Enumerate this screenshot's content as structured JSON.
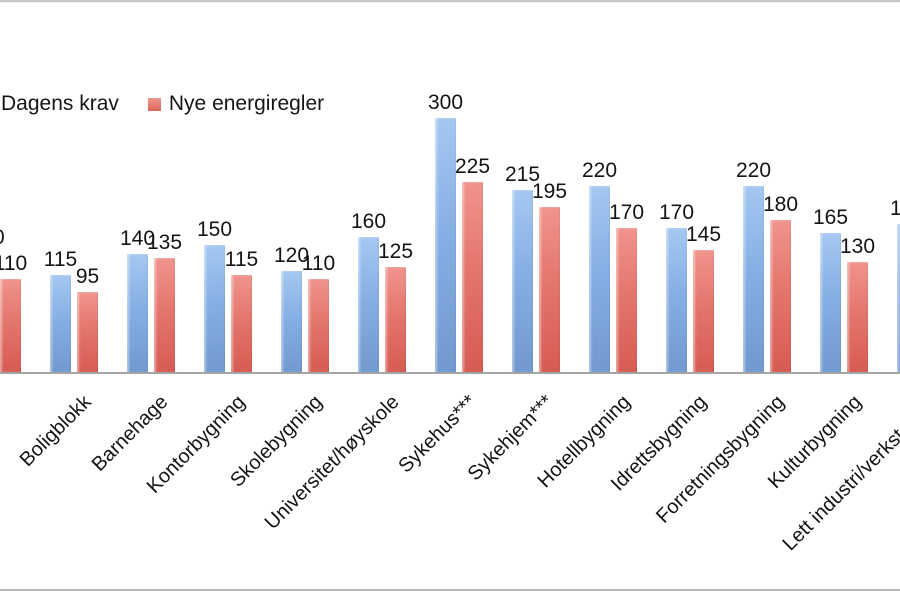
{
  "chart_data": {
    "type": "bar",
    "title": "",
    "xlabel": "",
    "ylabel": "",
    "grid": false,
    "legend_position": "top-left",
    "axis_visible": "x-only (chart cropped on left, right and top edges)",
    "ylim": [
      0,
      300
    ],
    "legend": [
      {
        "name": "Dagens krav",
        "color_top": "#a5c8f1",
        "color_bottom": "#7199ce"
      },
      {
        "name": "Nye energiregler",
        "color_top": "#f0948d",
        "color_bottom": "#d65b52"
      }
    ],
    "series_names": [
      "Dagens krav",
      "Nye energiregler"
    ],
    "left_edge_value_fragment": "0",
    "categories": [
      {
        "label": "",
        "dagens_krav": null,
        "nye_energiregler": 110,
        "note": "category clipped at left edge: only red bar (110) and a digit fragment of the blue value label are visible"
      },
      {
        "label": "Boligblokk",
        "dagens_krav": 115,
        "nye_energiregler": 95
      },
      {
        "label": "Barnehage",
        "dagens_krav": 140,
        "nye_energiregler": 135
      },
      {
        "label": "Kontorbygning",
        "dagens_krav": 150,
        "nye_energiregler": 115
      },
      {
        "label": "Skolebygning",
        "dagens_krav": 120,
        "nye_energiregler": 110
      },
      {
        "label": "Universitet/høyskole",
        "dagens_krav": 160,
        "nye_energiregler": 125
      },
      {
        "label": "Sykehus***",
        "dagens_krav": 300,
        "nye_energiregler": 225
      },
      {
        "label": "Sykehjem***",
        "dagens_krav": 215,
        "nye_energiregler": 195
      },
      {
        "label": "Hotellbygning",
        "dagens_krav": 220,
        "nye_energiregler": 170
      },
      {
        "label": "Idrettsbygning",
        "dagens_krav": 170,
        "nye_energiregler": 145
      },
      {
        "label": "Forretningsbygning",
        "dagens_krav": 220,
        "nye_energiregler": 180
      },
      {
        "label": "Kulturbygning",
        "dagens_krav": 165,
        "nye_energiregler": 130
      },
      {
        "label": "Lett industri/verksteder*",
        "dagens_krav": 175,
        "nye_energiregler": null,
        "note": "category clipped at right edge: blue bar sliver and leading digit of its value label visible; red bar off-screen"
      }
    ]
  }
}
